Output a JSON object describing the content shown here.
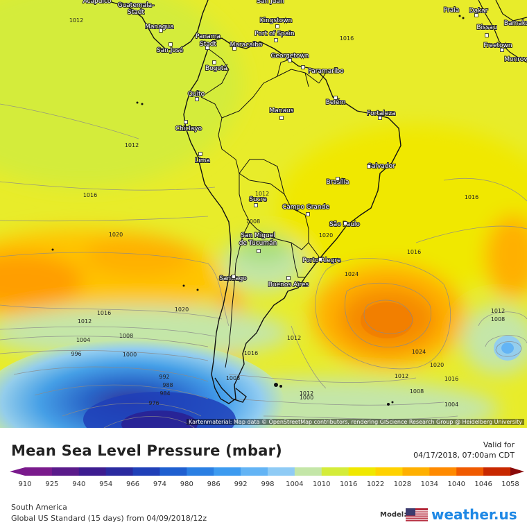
{
  "map": {
    "attribution": "Kartenmaterial: Map data © OpenStreetMap contributors, rendering GIScience Research Group @ Heidelberg University",
    "cities": [
      {
        "name": "Acapulco"
      },
      {
        "name": "Guatemala-"
      },
      {
        "name": "Stadt"
      },
      {
        "name": "Managua"
      },
      {
        "name": "San José"
      },
      {
        "name": "Panama"
      },
      {
        "name": "Stadt"
      },
      {
        "name": "Maracaibo"
      },
      {
        "name": "Bogotá"
      },
      {
        "name": "San Juan"
      },
      {
        "name": "Kingstown"
      },
      {
        "name": "Port of Spain"
      },
      {
        "name": "Georgetown"
      },
      {
        "name": "Paramaribo"
      },
      {
        "name": "Quito"
      },
      {
        "name": "Chiclayo"
      },
      {
        "name": "Lima"
      },
      {
        "name": "Manaus"
      },
      {
        "name": "Belém"
      },
      {
        "name": "Fortaleza"
      },
      {
        "name": "Salvador"
      },
      {
        "name": "Brasília"
      },
      {
        "name": "Sucre"
      },
      {
        "name": "Campo Grande"
      },
      {
        "name": "São Paulo"
      },
      {
        "name": "San Miguel"
      },
      {
        "name": "de Tucumán"
      },
      {
        "name": "Porto Alegre"
      },
      {
        "name": "Santiago"
      },
      {
        "name": "Buenos Aires"
      },
      {
        "name": "Praia"
      },
      {
        "name": "Dakar"
      },
      {
        "name": "Bissau"
      },
      {
        "name": "Bamako"
      },
      {
        "name": "Freetown"
      },
      {
        "name": "Monrovia"
      }
    ],
    "isobar_labels": [
      {
        "value": "1012"
      },
      {
        "value": "1012"
      },
      {
        "value": "1016"
      },
      {
        "value": "1016"
      },
      {
        "value": "1020"
      },
      {
        "value": "1012"
      },
      {
        "value": "1008"
      },
      {
        "value": "1020"
      },
      {
        "value": "1020"
      },
      {
        "value": "1016"
      },
      {
        "value": "1012"
      },
      {
        "value": "1004"
      },
      {
        "value": "1008"
      },
      {
        "value": "996"
      },
      {
        "value": "1000"
      },
      {
        "value": "992"
      },
      {
        "value": "988"
      },
      {
        "value": "984"
      },
      {
        "value": "976"
      },
      {
        "value": "1016"
      },
      {
        "value": "1008"
      },
      {
        "value": "1012"
      },
      {
        "value": "1000"
      },
      {
        "value": "1012"
      },
      {
        "value": "1024"
      },
      {
        "value": "1016"
      },
      {
        "value": "1024"
      },
      {
        "value": "1020"
      },
      {
        "value": "1016"
      },
      {
        "value": "1012"
      },
      {
        "value": "1008"
      },
      {
        "value": "1004"
      },
      {
        "value": "1016"
      },
      {
        "value": "1012"
      },
      {
        "value": "1008"
      },
      {
        "value": "1012"
      },
      {
        "value": "1016"
      },
      {
        "value": "1016"
      },
      {
        "value": "1012"
      }
    ]
  },
  "legend": {
    "title": "Mean Sea Level Pressure (mbar)",
    "valid_label": "Valid for",
    "valid_time": "04/17/2018, 07:00am CDT",
    "region": "South America",
    "model_run": "Global US Standard (15 days) from 04/09/2018/12z",
    "model_label": "Model:",
    "brand": "weather.us",
    "ticks": [
      "910",
      "925",
      "940",
      "954",
      "966",
      "974",
      "980",
      "986",
      "992",
      "998",
      "1004",
      "1010",
      "1016",
      "1022",
      "1028",
      "1034",
      "1040",
      "1046",
      "1058"
    ],
    "colors": [
      "#7a1a8c",
      "#5a1a8a",
      "#3d1c90",
      "#2a2aa0",
      "#2040b8",
      "#1f5fd0",
      "#2a7fe3",
      "#3d9bf0",
      "#63b4f5",
      "#8fcbf5",
      "#c4e6a8",
      "#d4ec3a",
      "#f0e800",
      "#ffd200",
      "#ffb000",
      "#ff8a00",
      "#f05a00",
      "#c82800",
      "#8a0a0a"
    ]
  }
}
